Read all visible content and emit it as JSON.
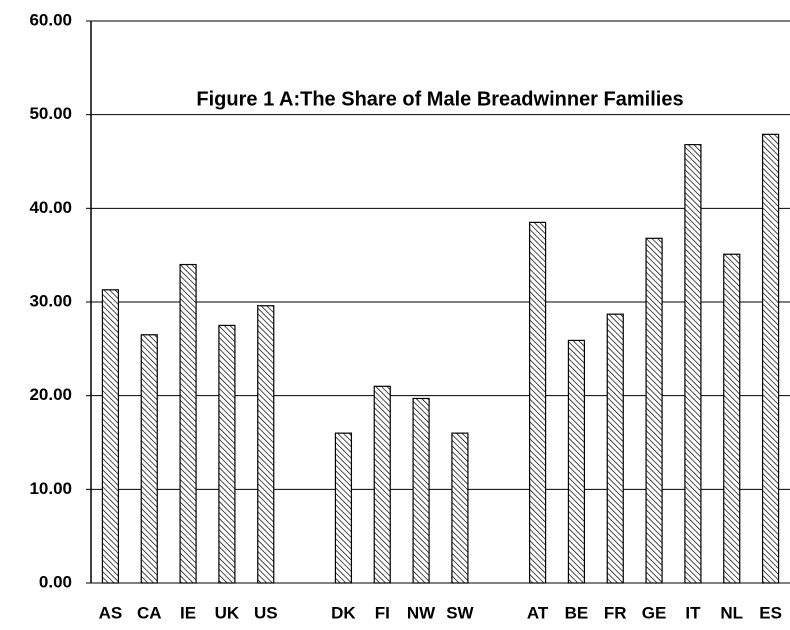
{
  "chart_data": {
    "type": "bar",
    "title": "Figure 1 A:The Share of Male Breadwinner Families",
    "categories": [
      "AS",
      "CA",
      "IE",
      "UK",
      "US",
      null,
      "DK",
      "FI",
      "NW",
      "SW",
      null,
      "AT",
      "BE",
      "FR",
      "GE",
      "IT",
      "NL",
      "ES"
    ],
    "values": [
      31.3,
      26.5,
      34.0,
      27.5,
      29.6,
      null,
      16.0,
      21.0,
      19.7,
      16.0,
      null,
      38.5,
      25.9,
      28.7,
      36.8,
      46.8,
      35.1,
      47.9
    ],
    "color": "#000000",
    "ylim": [
      0,
      60
    ],
    "yticks": [
      {
        "value": 0,
        "label": "0.00"
      },
      {
        "value": 10,
        "label": "10.00"
      },
      {
        "value": 20,
        "label": "20.00"
      },
      {
        "value": 30,
        "label": "30.00"
      },
      {
        "value": 40,
        "label": "40.00"
      },
      {
        "value": 50,
        "label": "50.00"
      },
      {
        "value": 60,
        "label": "60.00"
      }
    ],
    "grid": true
  }
}
